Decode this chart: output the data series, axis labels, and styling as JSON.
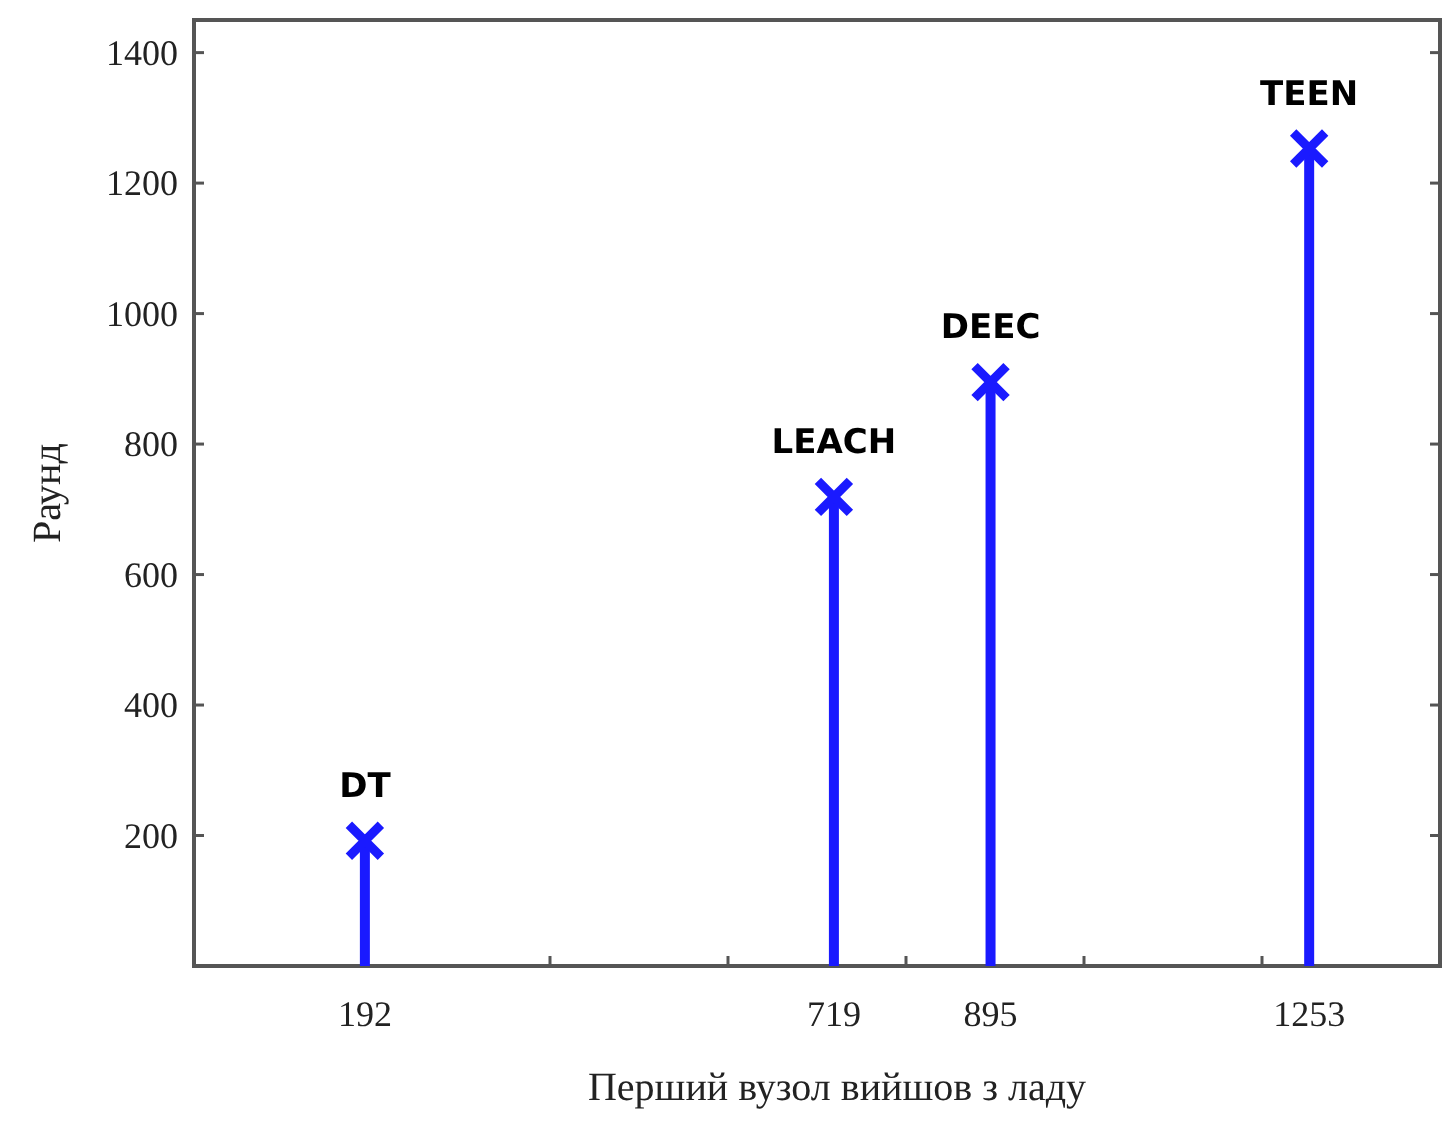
{
  "chart_data": {
    "type": "lollipop",
    "xlabel": "Перший вузол вийшов з ладу",
    "ylabel": "Раунд",
    "x": [
      192,
      719,
      895,
      1253
    ],
    "series": [
      {
        "color": "#1a1aff",
        "values": [
          192,
          719,
          895,
          1253
        ]
      }
    ],
    "marker": "cross",
    "xlim": [
      0,
      1400
    ],
    "ylim": [
      0,
      1450
    ],
    "xticks": [
      192,
      {
        "value": 400,
        "label": null
      },
      {
        "value": 600,
        "label": null
      },
      719,
      {
        "value": 800,
        "label": null
      },
      895,
      {
        "value": 1000,
        "label": null
      },
      {
        "value": 1200,
        "label": null
      },
      1253
    ],
    "yticks": [
      200,
      400,
      600,
      800,
      1000,
      1200,
      1400
    ],
    "annotations": [
      {
        "text": "DT",
        "x": 192,
        "y": 192
      },
      {
        "text": "LEACH",
        "x": 719,
        "y": 719
      },
      {
        "text": "DEEC",
        "x": 895,
        "y": 895
      },
      {
        "text": "TEEN",
        "x": 1253,
        "y": 1253
      }
    ],
    "grid": false
  }
}
